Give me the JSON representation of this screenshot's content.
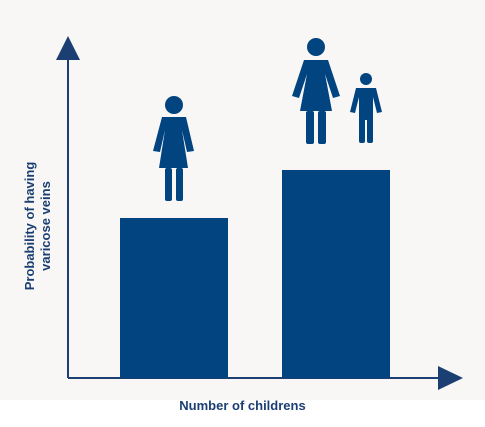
{
  "chart_data": {
    "type": "bar",
    "categories": [
      "",
      ""
    ],
    "values": [
      1.0,
      1.3
    ],
    "ylim": [
      0,
      2
    ],
    "xlabel": "Number of childrens",
    "ylabel": [
      "Probability of having",
      "varicose veins"
    ],
    "grid": false,
    "legend": "none",
    "icons": [
      "woman-icon",
      "woman-and-child-icon"
    ]
  },
  "colors": {
    "bar": "#014480",
    "axis": "#1b3f73",
    "background": "#f8f7f6"
  }
}
